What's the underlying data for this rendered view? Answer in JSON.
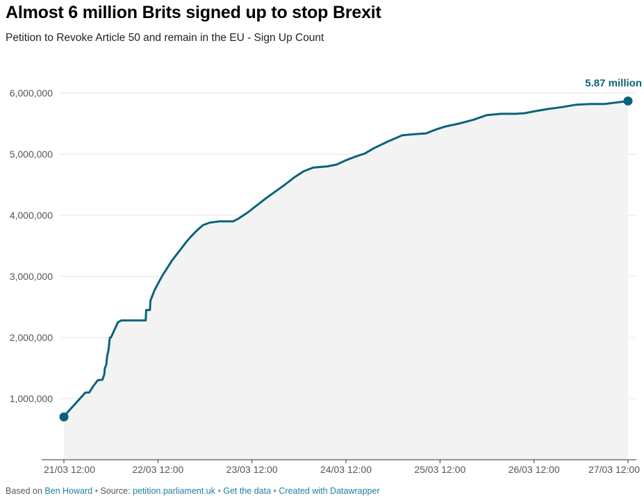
{
  "header": {
    "title": "Almost 6 million Brits signed up to stop Brexit",
    "subtitle": "Petition to Revoke Article 50 and remain in the EU - Sign Up Count"
  },
  "colors": {
    "line": "#08637a",
    "area": "#f3f3f3",
    "grid": "#e6e6e6",
    "axis": "#333333",
    "link": "#1d81a2"
  },
  "chart_data": {
    "type": "area",
    "title": "Almost 6 million Brits signed up to stop Brexit",
    "subtitle": "Petition to Revoke Article 50 and remain in the EU - Sign Up Count",
    "xlabel": "",
    "ylabel": "",
    "x_unit": "days since 21/03 12:00",
    "xlim": [
      0,
      6
    ],
    "ylim": [
      0,
      6000000
    ],
    "grid": true,
    "yticks": [
      1000000,
      2000000,
      3000000,
      4000000,
      5000000,
      6000000
    ],
    "ytick_labels": [
      "1,000,000",
      "2,000,000",
      "3,000,000",
      "4,000,000",
      "5,000,000",
      "6,000,000"
    ],
    "xticks": [
      0,
      1,
      2,
      3,
      4,
      5,
      6
    ],
    "xtick_labels": [
      "21/03 12:00",
      "22/03 12:00",
      "23/03 12:00",
      "24/03 12:00",
      "25/03 12:00",
      "26/03 12:00",
      "27/03 12:00"
    ],
    "series": [
      {
        "name": "Sign Up Count",
        "x": [
          0,
          0.04,
          0.1,
          0.17,
          0.23,
          0.27,
          0.31,
          0.36,
          0.41,
          0.43,
          0.435,
          0.45,
          0.46,
          0.475,
          0.485,
          0.49,
          0.5,
          0.53,
          0.575,
          0.61,
          0.65,
          0.87,
          0.875,
          0.88,
          0.915,
          0.92,
          0.96,
          1.0,
          1.05,
          1.1,
          1.15,
          1.2,
          1.25,
          1.3,
          1.35,
          1.42,
          1.48,
          1.55,
          1.65,
          1.8,
          1.85,
          1.95,
          2.05,
          2.15,
          2.25,
          2.35,
          2.45,
          2.55,
          2.65,
          2.8,
          2.9,
          3.0,
          3.1,
          3.2,
          3.3,
          3.45,
          3.6,
          3.75,
          3.85,
          3.95,
          4.05,
          4.2,
          4.35,
          4.5,
          4.65,
          4.8,
          4.9,
          5.0,
          5.15,
          5.3,
          5.45,
          5.6,
          5.75,
          5.9,
          6.0
        ],
        "values": [
          700000,
          780000,
          880000,
          1000000,
          1100000,
          1100000,
          1200000,
          1300000,
          1310000,
          1400000,
          1500000,
          1550000,
          1700000,
          1800000,
          1950000,
          2000000,
          2000000,
          2100000,
          2250000,
          2280000,
          2280000,
          2280000,
          2450000,
          2450000,
          2450000,
          2600000,
          2760000,
          2880000,
          3020000,
          3140000,
          3260000,
          3360000,
          3460000,
          3560000,
          3650000,
          3760000,
          3840000,
          3880000,
          3900000,
          3900000,
          3940000,
          4040000,
          4160000,
          4280000,
          4390000,
          4500000,
          4620000,
          4720000,
          4780000,
          4800000,
          4830000,
          4900000,
          4960000,
          5010000,
          5100000,
          5210000,
          5310000,
          5330000,
          5340000,
          5400000,
          5450000,
          5500000,
          5560000,
          5640000,
          5660000,
          5660000,
          5670000,
          5700000,
          5740000,
          5770000,
          5810000,
          5820000,
          5820000,
          5850000,
          5870000
        ]
      }
    ],
    "annotations": [
      {
        "text": "5.87 million",
        "x": 6,
        "y": 5870000
      }
    ]
  },
  "footer": {
    "based_on_prefix": "Based on",
    "based_on_link": "Ben Howard",
    "separator": "•",
    "source_prefix": "Source:",
    "source_link": "petition.parliament.uk",
    "get_data": "Get the data",
    "created_with": "Created with Datawrapper"
  }
}
